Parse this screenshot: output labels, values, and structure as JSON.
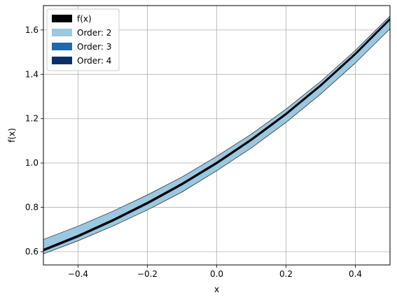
{
  "chart_data": {
    "type": "area",
    "xlabel": "x",
    "ylabel": "f(x)",
    "xlim": [
      -0.5,
      0.5
    ],
    "ylim": [
      0.54,
      1.71
    ],
    "x_ticks": [
      -0.4,
      -0.2,
      0.0,
      0.2,
      0.4
    ],
    "x_tick_labels": [
      "−0.4",
      "−0.2",
      "0.0",
      "0.2",
      "0.4"
    ],
    "y_ticks": [
      0.6,
      0.8,
      1.0,
      1.2,
      1.4,
      1.6
    ],
    "y_tick_labels": [
      "0.6",
      "0.8",
      "1.0",
      "1.2",
      "1.4",
      "1.6"
    ],
    "grid": true,
    "legend_placement": "top-left",
    "function_curve": {
      "name": "f(x)",
      "color": "#000000",
      "x": [
        -0.5,
        -0.4,
        -0.3,
        -0.2,
        -0.1,
        0.0,
        0.1,
        0.2,
        0.3,
        0.4,
        0.5
      ],
      "y": [
        0.607,
        0.67,
        0.741,
        0.819,
        0.905,
        1.0,
        1.105,
        1.221,
        1.35,
        1.492,
        1.649
      ]
    },
    "bands": [
      {
        "name": "Order: 2",
        "color": "#9ac8e0",
        "x": [
          -0.5,
          -0.4,
          -0.3,
          -0.2,
          -0.1,
          0.0,
          0.1,
          0.2,
          0.3,
          0.4,
          0.5
        ],
        "upper": [
          0.655,
          0.715,
          0.782,
          0.856,
          0.937,
          1.03,
          1.13,
          1.243,
          1.368,
          1.508,
          1.663
        ],
        "lower": [
          0.59,
          0.649,
          0.715,
          0.788,
          0.869,
          0.965,
          1.068,
          1.183,
          1.311,
          1.451,
          1.605
        ]
      },
      {
        "name": "Order: 3",
        "color": "#2268ad",
        "x": [
          -0.5,
          -0.4,
          -0.3,
          -0.2,
          -0.1,
          0.0,
          0.1,
          0.2,
          0.3,
          0.4,
          0.5
        ],
        "upper": [
          0.612,
          0.675,
          0.746,
          0.824,
          0.91,
          1.005,
          1.11,
          1.226,
          1.355,
          1.497,
          1.654
        ],
        "lower": [
          0.602,
          0.665,
          0.736,
          0.814,
          0.9,
          0.995,
          1.1,
          1.216,
          1.345,
          1.487,
          1.644
        ]
      },
      {
        "name": "Order: 4",
        "color": "#08306b",
        "x": [
          -0.5,
          -0.4,
          -0.3,
          -0.2,
          -0.1,
          0.0,
          0.1,
          0.2,
          0.3,
          0.4,
          0.5
        ],
        "upper": [
          0.608,
          0.671,
          0.742,
          0.82,
          0.906,
          1.001,
          1.106,
          1.222,
          1.351,
          1.493,
          1.65
        ],
        "lower": [
          0.606,
          0.669,
          0.74,
          0.818,
          0.904,
          0.999,
          1.104,
          1.22,
          1.349,
          1.491,
          1.648
        ]
      }
    ],
    "legend": [
      {
        "label": "f(x)",
        "color": "#000000"
      },
      {
        "label": "Order: 2",
        "color": "#9ac8e0"
      },
      {
        "label": "Order: 3",
        "color": "#2268ad"
      },
      {
        "label": "Order: 4",
        "color": "#08306b"
      }
    ]
  }
}
